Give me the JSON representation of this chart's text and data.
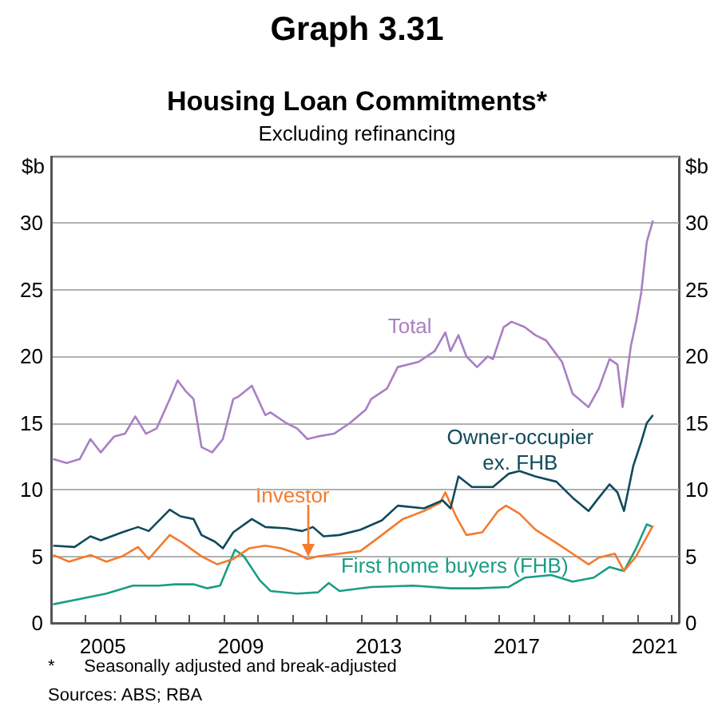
{
  "chart_data": {
    "type": "line",
    "title": "Graph 3.31",
    "subtitle": "Housing Loan Commitments*",
    "annotations": [
      "Excluding refinancing",
      "*      Seasonally adjusted and break-adjusted",
      "Sources: ABS; RBA"
    ],
    "ylabel": "$b",
    "y2label": "$b",
    "xlim": [
      2004,
      2022.2
    ],
    "xticks": [
      {
        "value": 2005,
        "label": null
      },
      {
        "value": 2006,
        "label": null
      },
      {
        "value": 2007,
        "label": null
      },
      {
        "value": 2008,
        "label": null
      },
      {
        "value": 2009,
        "label": null
      },
      {
        "value": 2010,
        "label": null
      },
      {
        "value": 2011,
        "label": null
      },
      {
        "value": 2012,
        "label": null
      },
      {
        "value": 2013,
        "label": null
      },
      {
        "value": 2014,
        "label": null
      },
      {
        "value": 2015,
        "label": null
      },
      {
        "value": 2016,
        "label": null
      },
      {
        "value": 2017,
        "label": null
      },
      {
        "value": 2018,
        "label": null
      },
      {
        "value": 2019,
        "label": null
      },
      {
        "value": 2020,
        "label": null
      },
      {
        "value": 2021,
        "label": null
      },
      {
        "value": 2022,
        "label": null
      },
      {
        "value": 2005.5,
        "label": "2005"
      },
      {
        "value": 2009.5,
        "label": "2009"
      },
      {
        "value": 2013.5,
        "label": "2013"
      },
      {
        "value": 2017.5,
        "label": "2017"
      },
      {
        "value": 2021.5,
        "label": "2021"
      }
    ],
    "ylim": [
      0,
      35
    ],
    "yticks": [
      0,
      5,
      10,
      15,
      20,
      25,
      30
    ],
    "y2lim": [
      0,
      35
    ],
    "y2ticks": [
      0,
      5,
      10,
      15,
      20,
      25,
      30
    ],
    "grid": "y",
    "legend": false,
    "marker": "none",
    "line_style": "solid",
    "series": [
      {
        "name": "Total",
        "color": "#a97fc4",
        "x": [
          2004.06,
          2004.45,
          2004.83,
          2005.14,
          2005.44,
          2005.83,
          2006.14,
          2006.44,
          2006.75,
          2007.06,
          2007.44,
          2007.67,
          2007.9,
          2008.13,
          2008.36,
          2008.67,
          2008.98,
          2009.28,
          2009.44,
          2009.82,
          2010.21,
          2010.36,
          2010.82,
          2011.13,
          2011.43,
          2011.74,
          2012.2,
          2012.66,
          2013.12,
          2013.28,
          2013.74,
          2014.05,
          2014.66,
          2015.12,
          2015.43,
          2015.58,
          2015.81,
          2016.04,
          2016.35,
          2016.66,
          2016.81,
          2017.12,
          2017.35,
          2017.73,
          2018.04,
          2018.35,
          2018.58,
          2018.81,
          2019.12,
          2019.58,
          2019.88,
          2020.19,
          2020.42,
          2020.57,
          2020.81,
          2020.96,
          2021.11,
          2021.27,
          2021.45
        ],
        "values": [
          12.3,
          12.0,
          12.3,
          13.8,
          12.8,
          14.0,
          14.2,
          15.5,
          14.2,
          14.6,
          16.8,
          18.2,
          17.4,
          16.8,
          13.2,
          12.8,
          13.8,
          16.8,
          17.0,
          17.8,
          15.6,
          15.8,
          15.0,
          14.6,
          13.8,
          14.0,
          14.2,
          15.0,
          16.0,
          16.8,
          17.6,
          19.2,
          19.6,
          20.4,
          21.8,
          20.4,
          21.6,
          20.0,
          19.2,
          20.0,
          19.8,
          22.2,
          22.6,
          22.2,
          21.6,
          21.2,
          20.4,
          19.6,
          17.2,
          16.2,
          17.6,
          19.8,
          19.4,
          16.2,
          20.8,
          22.6,
          24.8,
          28.6,
          30.2
        ]
      },
      {
        "name": "Owner-occupier\nex. FHB",
        "color": "#0e4b5a",
        "x": [
          2004.06,
          2004.68,
          2005.14,
          2005.44,
          2006.06,
          2006.52,
          2006.83,
          2007.44,
          2007.75,
          2008.13,
          2008.36,
          2008.75,
          2008.98,
          2009.28,
          2009.82,
          2010.21,
          2010.82,
          2011.28,
          2011.59,
          2011.9,
          2012.36,
          2012.97,
          2013.59,
          2014.05,
          2014.81,
          2015.35,
          2015.58,
          2015.81,
          2016.2,
          2016.81,
          2017.27,
          2017.58,
          2018.04,
          2018.65,
          2019.12,
          2019.58,
          2019.88,
          2020.19,
          2020.42,
          2020.61,
          2020.88,
          2021.11,
          2021.27,
          2021.45
        ],
        "values": [
          5.8,
          5.7,
          6.5,
          6.2,
          6.8,
          7.2,
          6.9,
          8.5,
          8.0,
          7.8,
          6.6,
          6.1,
          5.6,
          6.8,
          7.8,
          7.2,
          7.1,
          6.9,
          7.2,
          6.5,
          6.6,
          7.0,
          7.7,
          8.8,
          8.6,
          9.2,
          8.6,
          11.0,
          10.2,
          10.2,
          11.2,
          11.4,
          11.0,
          10.6,
          9.4,
          8.4,
          9.4,
          10.4,
          9.8,
          8.4,
          11.8,
          13.6,
          15.0,
          15.6
        ]
      },
      {
        "name": "Investor",
        "color": "#f47b2e",
        "x": [
          2004.06,
          2004.52,
          2005.14,
          2005.6,
          2006.06,
          2006.52,
          2006.83,
          2007.44,
          2007.82,
          2008.36,
          2008.82,
          2009.28,
          2009.74,
          2010.21,
          2010.67,
          2011.13,
          2011.43,
          2011.74,
          2012.36,
          2012.97,
          2013.59,
          2014.2,
          2014.81,
          2015.27,
          2015.43,
          2015.74,
          2016.04,
          2016.5,
          2016.96,
          2017.19,
          2017.58,
          2018.04,
          2018.65,
          2019.12,
          2019.58,
          2019.88,
          2020.34,
          2020.61,
          2020.96,
          2021.45
        ],
        "values": [
          5.1,
          4.6,
          5.1,
          4.6,
          5.0,
          5.7,
          4.8,
          6.6,
          6.0,
          5.0,
          4.4,
          4.8,
          5.6,
          5.8,
          5.6,
          5.2,
          4.8,
          5.0,
          5.2,
          5.4,
          6.6,
          7.8,
          8.4,
          9.0,
          9.8,
          8.0,
          6.6,
          6.8,
          8.4,
          8.8,
          8.2,
          7.0,
          6.0,
          5.2,
          4.4,
          4.9,
          5.2,
          3.9,
          5.0,
          7.3
        ]
      },
      {
        "name": "First home buyers (FHB)",
        "color": "#1a9d83",
        "x": [
          2004.06,
          2004.83,
          2005.6,
          2006.37,
          2007.13,
          2007.59,
          2008.13,
          2008.52,
          2008.9,
          2009.33,
          2009.59,
          2010.05,
          2010.36,
          2011.13,
          2011.74,
          2012.05,
          2012.36,
          2013.28,
          2014.51,
          2015.58,
          2016.35,
          2017.27,
          2017.73,
          2018.5,
          2019.12,
          2019.73,
          2020.19,
          2020.61,
          2020.96,
          2021.27,
          2021.45
        ],
        "values": [
          1.4,
          1.8,
          2.2,
          2.8,
          2.8,
          2.9,
          2.9,
          2.6,
          2.8,
          5.5,
          5.0,
          3.2,
          2.4,
          2.2,
          2.3,
          3.0,
          2.4,
          2.7,
          2.8,
          2.6,
          2.6,
          2.7,
          3.4,
          3.6,
          3.1,
          3.4,
          4.2,
          3.9,
          5.6,
          7.4,
          7.2
        ]
      }
    ]
  }
}
